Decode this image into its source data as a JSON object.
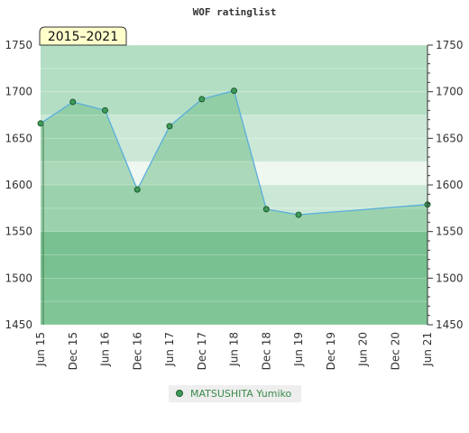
{
  "chart_data": {
    "type": "area",
    "title": "WOF ratinglist",
    "period_label": "2015–2021",
    "xlabel": "",
    "ylabel": "",
    "ylim": [
      1450,
      1750
    ],
    "y_ticks": [
      1450,
      1500,
      1550,
      1600,
      1650,
      1700,
      1750
    ],
    "x_ticks": [
      "Jun 15",
      "Dec 15",
      "Jun 16",
      "Dec 16",
      "Jun 17",
      "Dec 17",
      "Jun 18",
      "Dec 18",
      "Jun 19",
      "Dec 19",
      "Jun 20",
      "Dec 20",
      "Jun 21"
    ],
    "grid": true,
    "legend_position": "bottom-center",
    "series": [
      {
        "name": "MATSUSHITA Yumiko",
        "color": "#5aaedc",
        "marker_color": "#3f9a5a",
        "x": [
          "Jun 15",
          "Dec 15",
          "Jun 16",
          "Dec 16",
          "Jun 17",
          "Dec 17",
          "Jun 18",
          "Dec 18",
          "Jun 19",
          "Jun 21"
        ],
        "values": [
          1666,
          1689,
          1680,
          1595,
          1663,
          1692,
          1701,
          1574,
          1568,
          1579
        ]
      }
    ]
  },
  "colors": {
    "band_dark": "#7cc494",
    "band_mid": "#8ecda2",
    "band_light": "#b3dec4",
    "band_lighter": "#cbe8d6",
    "band_lightest": "#eef7f0",
    "area_fill": "#74c08d",
    "period_box_fill": "#ffffcc",
    "legend_box_fill": "#eeeeee"
  }
}
